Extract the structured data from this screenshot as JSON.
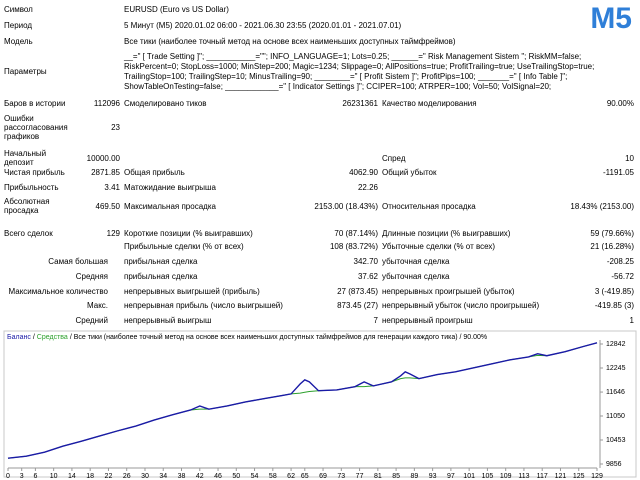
{
  "header": {
    "badge": "M5",
    "rows": [
      {
        "label": "Символ",
        "value": "EURUSD (Euro vs US Dollar)"
      },
      {
        "label": "Период",
        "value": "5 Минут (M5) 2020.01.02 06:00 - 2021.06.30 23:55 (2020.01.01 - 2021.07.01)"
      },
      {
        "label": "Модель",
        "value": "Все тики (наиболее точный метод на основе всех наименьших доступных таймфреймов)"
      }
    ]
  },
  "parameters": {
    "label": "Параметры",
    "lines": [
      "__=\" [ Trade Setting ]\"; ___________=\"\"; INFO_LANGUAGE=1; Lots=0.25; ______=\" Risk Management Sistem \"; RiskMM=false;",
      "RiskPercent=0; StopLoss=1000; MinStep=200; Magic=1234; Slippage=0; AllPositions=true; ProfitTrailing=true; UseTrailingStop=true;",
      "TrailingStop=100; TrailingStep=10; MinusTrailing=90; ________=\" [ Profit Sistem ]\"; ProfitPips=100; _______=\" [ Info Table ]\";",
      "ShowTableOnTesting=false; ____________=\" [ Indicator Settings ]\"; CCIPER=100; ATRPER=100; Vol=50; VolSignal=20;"
    ]
  },
  "stats": [
    {
      "c1": {
        "label": "Баров в истории",
        "value": "112096"
      },
      "c2": {
        "label": "Смоделировано тиков",
        "value": "26231361"
      },
      "c3": {
        "label": "Качество моделирования",
        "value": "90.00%"
      }
    },
    {
      "c1": {
        "label": "Ошибки рассогласования графиков",
        "value": "23"
      }
    },
    {
      "c1": {
        "label": "Начальный депозит",
        "value": "10000.00"
      },
      "c3": {
        "label": "Спред",
        "value": "10"
      }
    },
    {
      "c1": {
        "label": "Чистая прибыль",
        "value": "2871.85"
      },
      "c2": {
        "label": "Общая прибыль",
        "value": "4062.90"
      },
      "c3": {
        "label": "Общий убыток",
        "value": "-1191.05"
      }
    },
    {
      "c1": {
        "label": "Прибыльность",
        "value": "3.41"
      },
      "c2": {
        "label": "Матожидание выигрыша",
        "value": "22.26"
      }
    },
    {
      "c1": {
        "label": "Абсолютная просадка",
        "value": "469.50"
      },
      "c2": {
        "label": "Максимальная просадка",
        "value": "2153.00 (18.43%)"
      },
      "c3": {
        "label": "Относительная просадка",
        "value": "18.43% (2153.00)"
      }
    },
    {
      "c1": {
        "label": "Всего сделок",
        "value": "129"
      },
      "c2": {
        "label": "Короткие позиции (% выигравших)",
        "value": "70 (87.14%)"
      },
      "c3": {
        "label": "Длинные позиции (% выигравших)",
        "value": "59 (79.66%)"
      }
    },
    {
      "c2": {
        "label": "Прибыльные сделки (% от всех)",
        "value": "108 (83.72%)"
      },
      "c3": {
        "label": "Убыточные сделки (% от всех)",
        "value": "21 (16.28%)"
      }
    },
    {
      "group": "Самая большая",
      "c2": {
        "label": "прибыльная сделка",
        "value": "342.70"
      },
      "c3": {
        "label": "убыточная сделка",
        "value": "-208.25"
      }
    },
    {
      "group": "Средняя",
      "c2": {
        "label": "прибыльная сделка",
        "value": "37.62"
      },
      "c3": {
        "label": "убыточная сделка",
        "value": "-56.72"
      }
    },
    {
      "group": "Максимальное количество",
      "c2": {
        "label": "непрерывных выигрышей (прибыль)",
        "value": "27 (873.45)"
      },
      "c3": {
        "label": "непрерывных проигрышей (убыток)",
        "value": "3 (-419.85)"
      }
    },
    {
      "group": "Макс.",
      "c2": {
        "label": "непрерывная прибыль (число выигрышей)",
        "value": "873.45 (27)"
      },
      "c3": {
        "label": "непрерывный убыток (число проигрышей)",
        "value": "-419.85 (3)"
      }
    },
    {
      "group": "Средний",
      "c2": {
        "label": "непрерывный выигрыш",
        "value": "7"
      },
      "c3": {
        "label": "непрерывный проигрыш",
        "value": "1"
      }
    }
  ],
  "chart_data": {
    "type": "line",
    "separator": "/",
    "subtitle": "Все тики (наиболее точный метод на основе всех наименьших доступных таймфреймов для генерации каждого тика) / 90.00%",
    "x": [
      0,
      4,
      8,
      12,
      16,
      20,
      24,
      28,
      32,
      36,
      40,
      42,
      44,
      48,
      52,
      56,
      60,
      62,
      64,
      65,
      66,
      68,
      72,
      76,
      78,
      80,
      84,
      86,
      87,
      88,
      90,
      94,
      98,
      102,
      106,
      110,
      114,
      116,
      118,
      122,
      126,
      129
    ],
    "series": [
      {
        "name": "Баланс",
        "color": "#1a1aa6",
        "values": [
          10000,
          10050,
          10150,
          10300,
          10420,
          10550,
          10680,
          10800,
          10950,
          11080,
          11200,
          11300,
          11220,
          11300,
          11400,
          11480,
          11560,
          11600,
          11850,
          11950,
          11900,
          11680,
          11700,
          11780,
          11900,
          11800,
          11900,
          12050,
          12150,
          12100,
          11980,
          12080,
          12150,
          12250,
          12350,
          12450,
          12520,
          12600,
          12550,
          12650,
          12780,
          12871.85
        ]
      },
      {
        "name": "Средства",
        "color": "#2ca02c",
        "values": [
          10000,
          10050,
          10150,
          10300,
          10420,
          10550,
          10680,
          10800,
          10950,
          11080,
          11200,
          11220,
          11220,
          11300,
          11400,
          11480,
          11560,
          11600,
          11620,
          11640,
          11660,
          11680,
          11700,
          11780,
          11780,
          11800,
          11900,
          11980,
          12000,
          12000,
          11980,
          12080,
          12150,
          12250,
          12350,
          12450,
          12520,
          12560,
          12550,
          12650,
          12780,
          12871.85
        ]
      }
    ],
    "xlim": [
      0,
      129
    ],
    "xticks": [
      0,
      3,
      6,
      10,
      14,
      18,
      22,
      26,
      30,
      34,
      38,
      42,
      46,
      50,
      54,
      58,
      62,
      65,
      69,
      73,
      77,
      81,
      85,
      89,
      93,
      97,
      101,
      105,
      109,
      113,
      117,
      121,
      125,
      129
    ],
    "ylim": [
      9806,
      12867
    ],
    "yticks": [
      9856,
      10453,
      11050,
      11646,
      12245,
      12842
    ],
    "grid": false
  }
}
